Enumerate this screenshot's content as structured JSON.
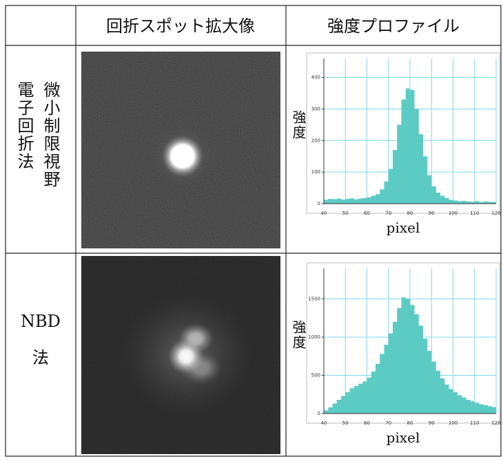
{
  "table": {
    "header": {
      "image": "回折スポット拡大像",
      "profile": "強度プロファイル"
    },
    "rows": [
      {
        "label": [
          "微小制限視野",
          "電子回折法"
        ],
        "profile": {
          "type": "histogram",
          "ylabel": "強度",
          "xlabel": "pixel",
          "color": "#5ccbc4",
          "grid": true,
          "bins": [
            40,
            42,
            44,
            46,
            48,
            50,
            52,
            54,
            56,
            58,
            60,
            62,
            64,
            66,
            68,
            70,
            72,
            74,
            76,
            78,
            80,
            82,
            84,
            86,
            88,
            90,
            92,
            94,
            96,
            98,
            100,
            102,
            104,
            106,
            108,
            110,
            112,
            114,
            116,
            118,
            120
          ],
          "counts": [
            12,
            15,
            14,
            16,
            13,
            15,
            17,
            14,
            16,
            18,
            20,
            25,
            30,
            45,
            70,
            110,
            170,
            250,
            330,
            365,
            360,
            300,
            220,
            150,
            90,
            55,
            35,
            25,
            18,
            12,
            10,
            8,
            9,
            7,
            6,
            8,
            5,
            7,
            6,
            5
          ],
          "xlim": [
            40,
            120
          ],
          "ylim": [
            0,
            460
          ],
          "xticks": [
            40,
            50,
            60,
            70,
            80,
            90,
            100,
            110,
            120
          ],
          "yticks": [
            0,
            100,
            200,
            300,
            400
          ]
        }
      },
      {
        "label": [
          "NBD",
          "法"
        ],
        "profile": {
          "type": "histogram",
          "ylabel": "強度",
          "xlabel": "pixel",
          "color": "#5ccbc4",
          "grid": true,
          "bins": [
            40,
            42,
            44,
            46,
            48,
            50,
            52,
            54,
            56,
            58,
            60,
            62,
            64,
            66,
            68,
            70,
            72,
            74,
            76,
            78,
            80,
            82,
            84,
            86,
            88,
            90,
            92,
            94,
            96,
            98,
            100,
            102,
            104,
            106,
            108,
            110,
            112,
            114,
            116,
            118,
            120
          ],
          "counts": [
            40,
            80,
            130,
            180,
            230,
            280,
            330,
            360,
            390,
            420,
            470,
            550,
            650,
            780,
            900,
            1050,
            1200,
            1380,
            1520,
            1500,
            1420,
            1300,
            1150,
            980,
            820,
            680,
            560,
            460,
            380,
            320,
            280,
            240,
            210,
            180,
            160,
            140,
            120,
            110,
            95,
            85
          ],
          "xlim": [
            40,
            120
          ],
          "ylim": [
            0,
            1900
          ],
          "xticks": [
            40,
            50,
            60,
            70,
            80,
            90,
            100,
            110,
            120
          ],
          "yticks": [
            0,
            500,
            1000,
            1500
          ]
        }
      }
    ]
  }
}
